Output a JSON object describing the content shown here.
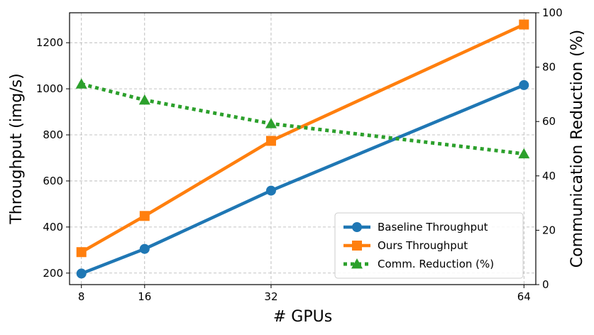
{
  "chart_data": {
    "type": "line",
    "title": "",
    "xlabel": "# GPUs",
    "ylabel": "Throughput (img/s)",
    "ylabel_right": "Communication Reduction (%)",
    "x": [
      8,
      16,
      32,
      64
    ],
    "xticks": [
      "8",
      "16",
      "32",
      "64"
    ],
    "xlim": [
      6.5,
      65.5
    ],
    "ylim": [
      150,
      1330
    ],
    "yticks": [
      200,
      400,
      600,
      800,
      1000,
      1200
    ],
    "ylim_right": [
      0,
      100
    ],
    "yticks_right": [
      0,
      20,
      40,
      60,
      80,
      100
    ],
    "grid": true,
    "legend_position": "bottom-right",
    "series": [
      {
        "name": "Baseline Throughput",
        "axis": "left",
        "values": [
          198,
          305,
          558,
          1016
        ],
        "color": "#1f77b4",
        "marker": "circle",
        "linestyle": "solid"
      },
      {
        "name": "Ours Throughput",
        "axis": "left",
        "values": [
          291,
          448,
          774,
          1279
        ],
        "color": "#ff7f0e",
        "marker": "square",
        "linestyle": "solid"
      },
      {
        "name": "Comm. Reduction (%)",
        "axis": "right",
        "values": [
          73.8,
          67.9,
          59.2,
          48.1
        ],
        "color": "#2ca02c",
        "marker": "triangle",
        "linestyle": "dotted"
      }
    ]
  }
}
